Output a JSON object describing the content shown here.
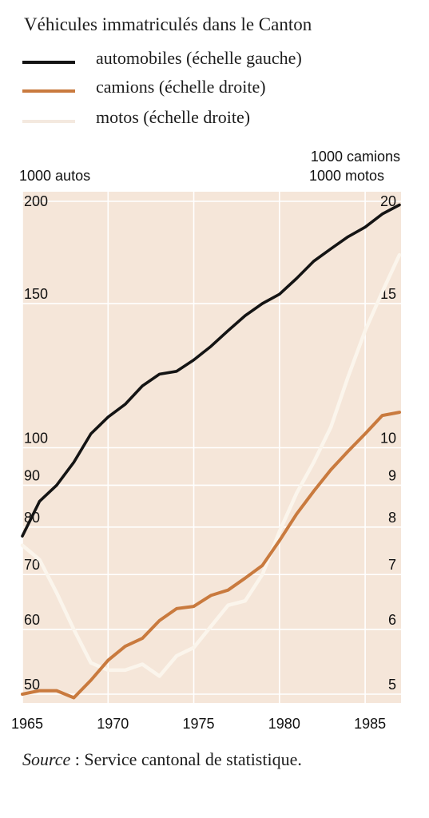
{
  "colors": {
    "autos": "#141414",
    "camions": "#c97a3e",
    "motos": "#fbf5ec",
    "plot_background": "#f5e6d9",
    "grid": "#ffffff"
  },
  "legend_swatch_colors": [
    "#141414",
    "#c97a3e",
    "#f4e9df"
  ],
  "chart_data": {
    "type": "line",
    "title": "Véhicules immatriculés dans le Canton",
    "x": [
      1965,
      1966,
      1967,
      1968,
      1969,
      1970,
      1971,
      1972,
      1973,
      1974,
      1975,
      1976,
      1977,
      1978,
      1979,
      1980,
      1981,
      1982,
      1983,
      1984,
      1985,
      1986,
      1987
    ],
    "xlim": [
      1965,
      1987
    ],
    "x_ticks": [
      1965,
      1970,
      1975,
      1980,
      1985
    ],
    "grid": true,
    "legend_position": "top-left",
    "left_axis": {
      "label": "1000 autos",
      "scale": "log",
      "ylim": [
        50,
        200
      ],
      "ticks": [
        50,
        60,
        70,
        80,
        90,
        100,
        150,
        200
      ]
    },
    "right_axis": {
      "label_lines": [
        "1000 camions",
        "1000 motos"
      ],
      "scale": "log",
      "ylim": [
        5,
        20
      ],
      "ticks": [
        5,
        6,
        7,
        8,
        9,
        10,
        15,
        20
      ]
    },
    "series": [
      {
        "name": "automobiles (échelle gauche)",
        "axis": "left",
        "values": [
          78,
          86,
          90,
          96,
          104,
          109,
          113,
          119,
          123,
          124,
          128,
          133,
          139,
          145,
          150,
          154,
          161,
          169,
          175,
          181,
          186,
          193,
          198
        ]
      },
      {
        "name": "camions (échelle droite)",
        "axis": "right",
        "values": [
          5.0,
          5.05,
          5.05,
          4.95,
          5.2,
          5.5,
          5.72,
          5.85,
          6.15,
          6.36,
          6.4,
          6.6,
          6.7,
          6.93,
          7.18,
          7.7,
          8.3,
          8.85,
          9.4,
          9.9,
          10.4,
          10.95,
          11.05
        ]
      },
      {
        "name": "motos (échelle droite)",
        "axis": "right",
        "values": [
          7.6,
          7.3,
          6.65,
          6.0,
          5.46,
          5.35,
          5.35,
          5.44,
          5.26,
          5.57,
          5.7,
          6.05,
          6.42,
          6.5,
          7.0,
          7.9,
          8.8,
          9.6,
          10.6,
          12.2,
          13.9,
          15.5,
          17.2
        ]
      }
    ]
  },
  "source": {
    "key": "Source",
    "text": " : Service cantonal de statistique."
  }
}
